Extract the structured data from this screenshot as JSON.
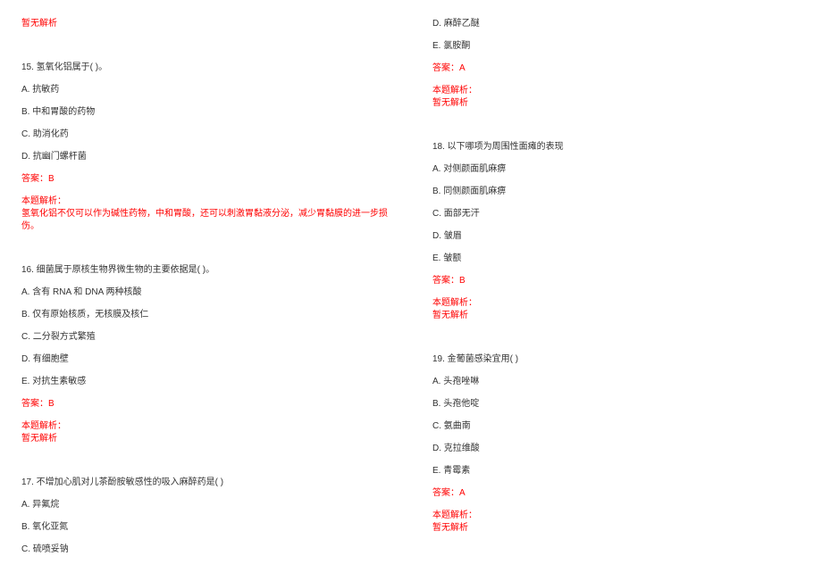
{
  "colors": {
    "text": "#333333",
    "red": "#ff0000",
    "bg": "#ffffff"
  },
  "font_size": 10,
  "left": {
    "top_no_analysis": "暂无解析",
    "q15": {
      "stem": "15. 氢氧化铝属于( )。",
      "a": "A. 抗敏药",
      "b": "B. 中和胃酸的药物",
      "c": "C. 助消化药",
      "d": "D. 抗幽门螺杆菌",
      "answer": "答案：B",
      "analysis_label": "本题解析：",
      "analysis_text": "氢氧化铝不仅可以作为碱性药物，中和胃酸，还可以刺激胃黏液分泌，减少胃黏膜的进一步损伤。"
    },
    "q16": {
      "stem": "16. 细菌属于原核生物界微生物的主要依据是( )。",
      "a": "A. 含有 RNA 和 DNA 两种核酸",
      "b": "B. 仅有原始核质，无核膜及核仁",
      "c": "C. 二分裂方式繁殖",
      "d": "D. 有细胞壁",
      "e": "E. 对抗生素敏感",
      "answer": "答案：B",
      "analysis_label": "本题解析：",
      "analysis_text": "暂无解析"
    },
    "q17": {
      "stem": "17. 不增加心肌对儿茶酚胺敏感性的吸入麻醉药是(    )",
      "a": "A. 异氟烷",
      "b": "B. 氧化亚氮",
      "c": "C. 硫喷妥钠"
    }
  },
  "right": {
    "q17_cont": {
      "d": "D. 麻醉乙醚",
      "e": "E. 氯胺酮",
      "answer": "答案：A",
      "analysis_label": "本题解析：",
      "analysis_text": "暂无解析"
    },
    "q18": {
      "stem": "18. 以下哪项为周围性面瘫的表现",
      "a": "A. 对侧颜面肌麻痹",
      "b": "B. 同侧颜面肌麻痹",
      "c": "C. 面部无汗",
      "d": "D. 皱眉",
      "e": "E. 皱额",
      "answer": "答案：B",
      "analysis_label": "本题解析：",
      "analysis_text": "暂无解析"
    },
    "q19": {
      "stem": "19. 金葡菌感染宜用(    )",
      "a": "A. 头孢唑啉",
      "b": "B. 头孢他啶",
      "c": "C. 氨曲南",
      "d": "D. 克拉维酸",
      "e": "E. 青霉素",
      "answer": "答案：A",
      "analysis_label": "本题解析：",
      "analysis_text": "暂无解析"
    }
  }
}
